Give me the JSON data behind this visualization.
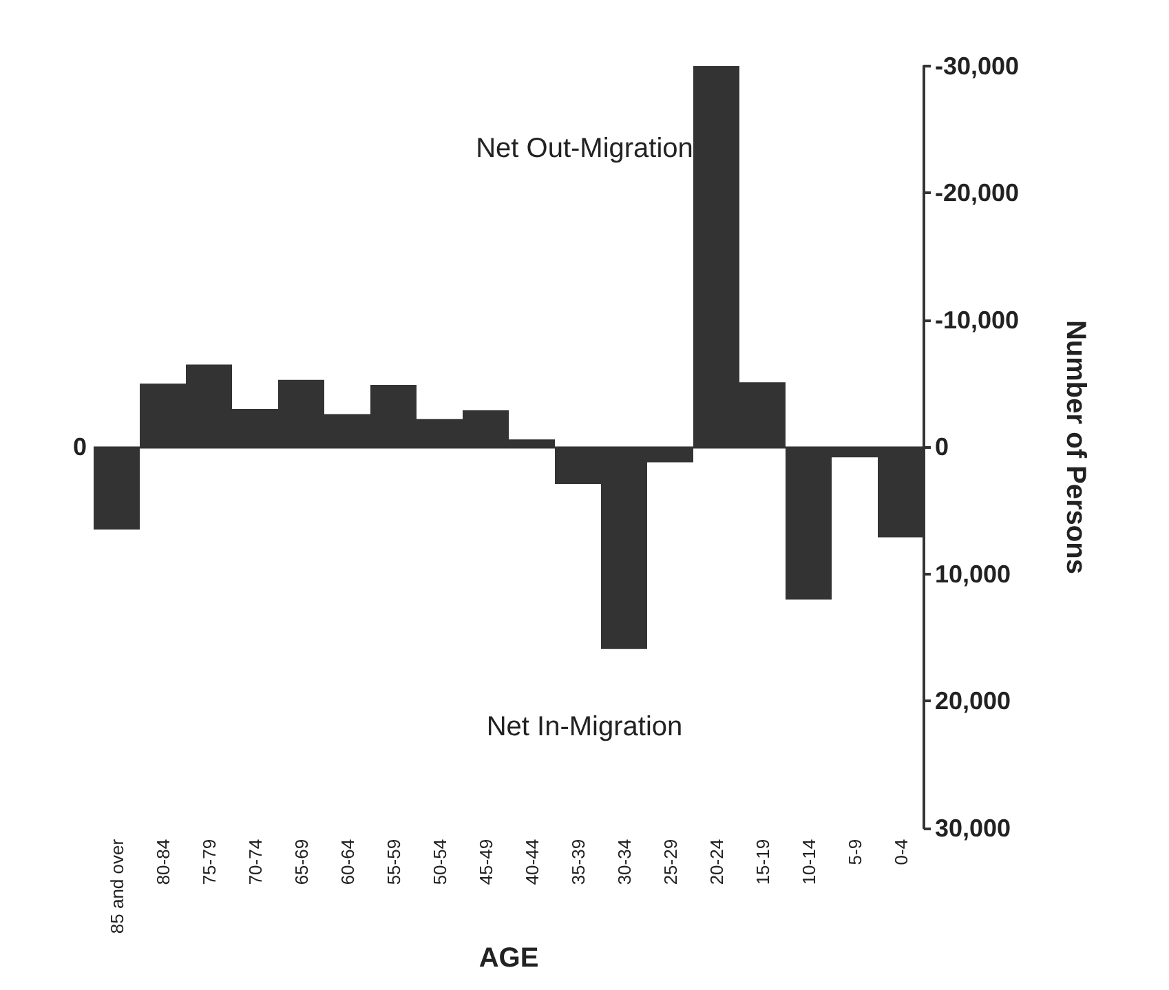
{
  "chart_data": {
    "type": "bar",
    "xlabel": "AGE",
    "ylabel": "Number of Persons",
    "categories": [
      "85 and over",
      "80-84",
      "75-79",
      "70-74",
      "65-69",
      "60-64",
      "55-59",
      "50-54",
      "45-49",
      "40-44",
      "35-39",
      "30-34",
      "25-29",
      "20-24",
      "15-19",
      "10-14",
      "5-9",
      "0-4"
    ],
    "values": [
      6500,
      -5000,
      -6500,
      -3000,
      -5300,
      -2600,
      -4900,
      -2200,
      -2900,
      -600,
      2900,
      15900,
      1200,
      -30000,
      -5100,
      12000,
      800,
      7100
    ],
    "color": "#333333",
    "ylim": [
      30000,
      -30000
    ],
    "yticks": [
      {
        "value": -30000,
        "label": "-30,000"
      },
      {
        "value": -20000,
        "label": "-20,000"
      },
      {
        "value": -10000,
        "label": "-10,000"
      },
      0,
      {
        "value": 10000,
        "label": "10,000"
      },
      {
        "value": 20000,
        "label": "20,000"
      },
      {
        "value": 30000,
        "label": "30,000"
      }
    ],
    "ref_lines": [
      {
        "axis": "y",
        "value": 0,
        "label": "0"
      }
    ],
    "annotations": [
      "Net Out-Migration",
      "Net In-Migration"
    ],
    "grid": false
  }
}
